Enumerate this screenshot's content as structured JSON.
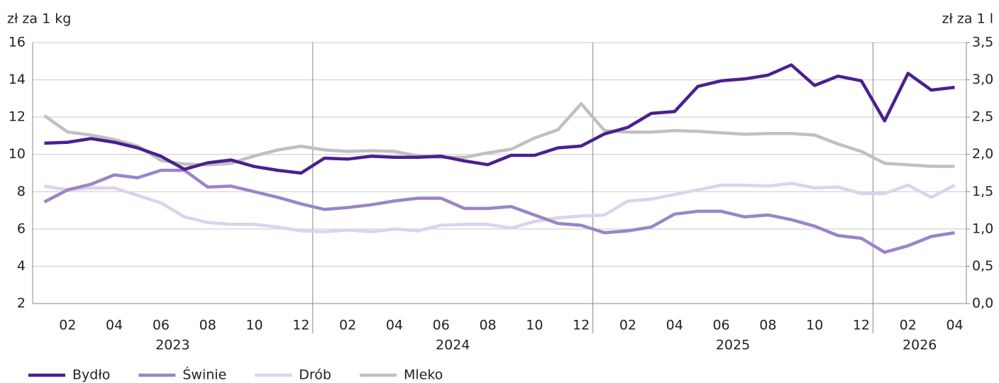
{
  "chart_data": {
    "type": "line",
    "y_label": "zł za 1 kg",
    "y2_label": "zł za 1 l",
    "categories": [
      null,
      "02",
      null,
      "04",
      null,
      "06",
      null,
      "08",
      null,
      "10",
      null,
      "12",
      null,
      "02",
      null,
      "04",
      null,
      "06",
      null,
      "08",
      null,
      "10",
      null,
      "12",
      null,
      "02",
      null,
      "04",
      null,
      "06",
      null,
      "08",
      null,
      "10",
      null,
      "12",
      null,
      "02",
      null,
      "04"
    ],
    "groups": [
      {
        "label": "2023",
        "count": 12
      },
      {
        "label": "2024",
        "count": 12
      },
      {
        "label": "2025",
        "count": 12
      },
      {
        "label": "2026",
        "count": 4
      }
    ],
    "ylim": [
      2,
      16
    ],
    "yticks": [
      2,
      4,
      6,
      8,
      10,
      12,
      14,
      16
    ],
    "y2lim": [
      0,
      3.5
    ],
    "y2ticks": [
      {
        "value": 0,
        "label": "0,0"
      },
      {
        "value": 0.5,
        "label": "0,5"
      },
      {
        "value": 1,
        "label": "1,0"
      },
      {
        "value": 1.5,
        "label": "1,5"
      },
      {
        "value": 2,
        "label": "2,0"
      },
      {
        "value": 2.5,
        "label": "2,5"
      },
      {
        "value": 3,
        "label": "3,0"
      },
      {
        "value": 3.5,
        "label": "3,5"
      }
    ],
    "grid": true,
    "legend": "bottom",
    "series": [
      {
        "name": "Bydło",
        "color": "#4b1f8f",
        "values": [
          10.6,
          10.65,
          10.85,
          10.65,
          10.35,
          9.9,
          9.2,
          9.55,
          9.7,
          9.35,
          9.15,
          9.0,
          9.8,
          9.75,
          9.9,
          9.85,
          9.85,
          9.9,
          9.65,
          9.45,
          9.95,
          9.95,
          10.35,
          10.45,
          11.1,
          11.45,
          12.2,
          12.3,
          13.65,
          13.95,
          14.05,
          14.25,
          14.8,
          13.7,
          14.2,
          13.95,
          11.8,
          14.35,
          13.45,
          13.6
        ]
      },
      {
        "name": "Świnie",
        "color": "#9b84c8",
        "values": [
          7.45,
          8.1,
          8.4,
          8.9,
          8.75,
          9.15,
          9.15,
          8.25,
          8.3,
          8.0,
          7.7,
          7.35,
          7.05,
          7.15,
          7.3,
          7.5,
          7.65,
          7.65,
          7.1,
          7.1,
          7.2,
          6.75,
          6.3,
          6.2,
          5.8,
          5.9,
          6.1,
          6.8,
          6.95,
          6.95,
          6.65,
          6.75,
          6.5,
          6.15,
          5.65,
          5.5,
          4.75,
          5.1,
          5.6,
          5.8
        ]
      },
      {
        "name": "Drób",
        "color": "#dcd3ec",
        "values": [
          8.3,
          8.1,
          8.2,
          8.2,
          7.8,
          7.4,
          6.65,
          6.35,
          6.25,
          6.25,
          6.1,
          5.9,
          5.85,
          5.95,
          5.85,
          6.0,
          5.9,
          6.2,
          6.25,
          6.25,
          6.05,
          6.4,
          6.6,
          6.7,
          6.75,
          7.5,
          7.6,
          7.85,
          8.1,
          8.35,
          8.35,
          8.3,
          8.45,
          8.2,
          8.25,
          7.9,
          7.9,
          8.35,
          7.7,
          8.35
        ]
      },
      {
        "name": "Mleko",
        "color": "#c0c0c0",
        "axis": "y2",
        "values": [
          2.52,
          2.3,
          2.26,
          2.2,
          2.11,
          1.92,
          1.87,
          1.86,
          1.88,
          1.98,
          2.06,
          2.11,
          2.06,
          2.04,
          2.05,
          2.04,
          1.98,
          1.96,
          1.96,
          2.02,
          2.07,
          2.22,
          2.33,
          2.68,
          2.32,
          2.3,
          2.3,
          2.32,
          2.31,
          2.29,
          2.27,
          2.28,
          2.28,
          2.26,
          2.14,
          2.04,
          1.88,
          1.86,
          1.84,
          1.84
        ]
      }
    ]
  }
}
